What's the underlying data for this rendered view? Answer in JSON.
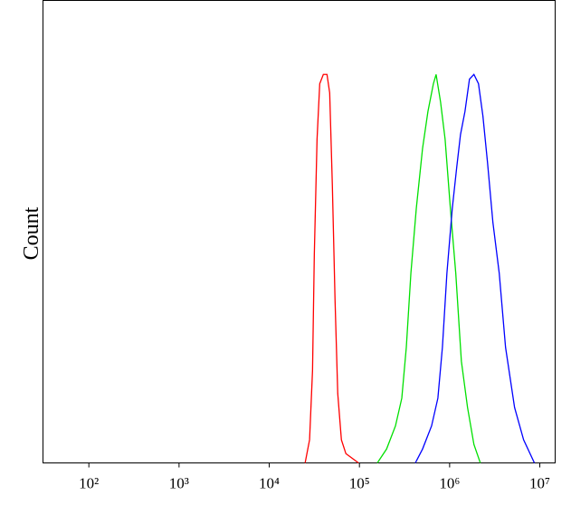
{
  "chart_data": {
    "type": "line",
    "xscale": "log",
    "ylabel": "Count",
    "xlim": [
      31,
      14800000
    ],
    "ylim": [
      0,
      100
    ],
    "xticks": [
      {
        "value": 100,
        "label": "10²"
      },
      {
        "value": 1000,
        "label": "10³"
      },
      {
        "value": 10000,
        "label": "10⁴"
      },
      {
        "value": 100000,
        "label": "10⁵"
      },
      {
        "value": 1000000,
        "label": "10⁶"
      },
      {
        "value": 10000000,
        "label": "10⁷"
      }
    ],
    "series": [
      {
        "color": "#ff0000",
        "x": [
          25000,
          28000,
          30200,
          31600,
          33900,
          36300,
          39800,
          43700,
          46800,
          50100,
          53700,
          57500,
          63100,
          70800,
          97700
        ],
        "values": [
          0,
          5,
          20,
          45,
          70,
          82,
          84,
          84,
          80,
          60,
          35,
          15,
          5,
          2,
          0
        ]
      },
      {
        "color": "#00e000",
        "x": [
          158000,
          200000,
          251000,
          295000,
          331000,
          372000,
          427000,
          501000,
          575000,
          661000,
          708000,
          794000,
          891000,
          1020000,
          1170000,
          1350000,
          1580000,
          1860000,
          2190000
        ],
        "values": [
          0,
          3,
          8,
          14,
          25,
          41,
          55,
          68,
          76,
          82,
          84,
          78,
          70,
          55,
          41,
          22,
          12,
          4,
          0
        ]
      },
      {
        "color": "#0000ff",
        "x": [
          417000,
          501000,
          631000,
          741000,
          832000,
          933000,
          1070000,
          1200000,
          1320000,
          1480000,
          1660000,
          1860000,
          2090000,
          2340000,
          2630000,
          3020000,
          3550000,
          4170000,
          5250000,
          6610000,
          8710000
        ],
        "values": [
          0,
          3,
          8,
          14,
          25,
          41,
          55,
          64,
          71,
          76,
          83,
          84,
          82,
          75,
          65,
          52,
          41,
          25,
          12,
          5,
          0
        ]
      }
    ]
  }
}
